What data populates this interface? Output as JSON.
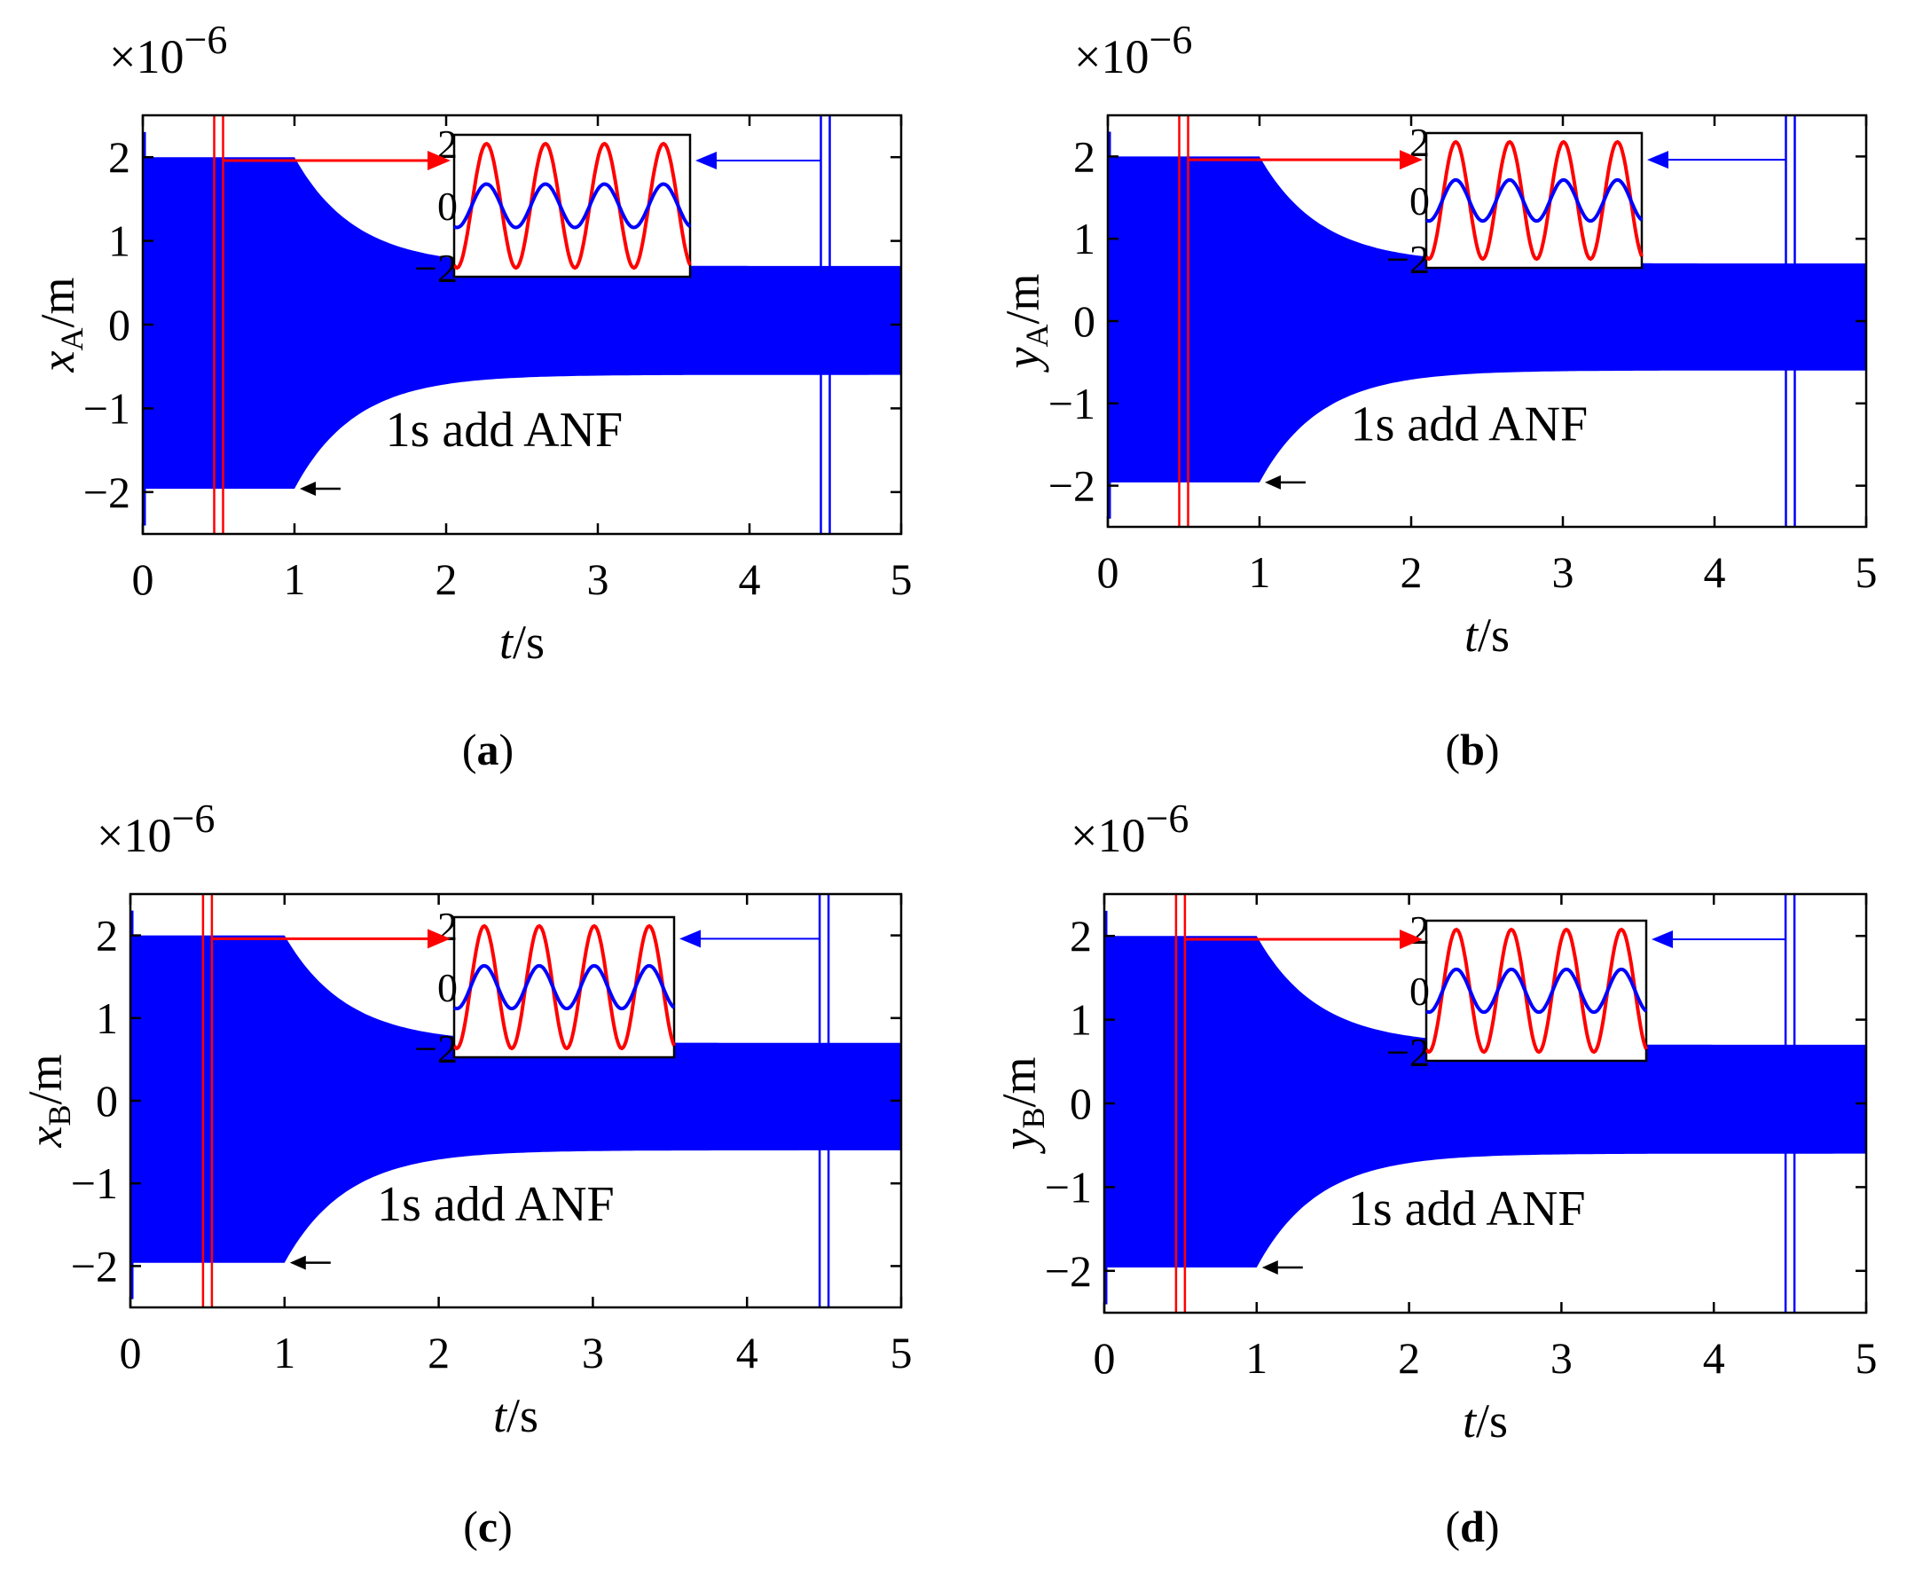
{
  "figure": {
    "colors": {
      "signal": "#0000ff",
      "inset_red": "#ff0000",
      "inset_blue": "#0000ff",
      "arrow_black": "#000000",
      "axes": "#000000"
    },
    "panels": [
      {
        "caption": "a",
        "ylabel_var": "x",
        "ylabel_sub": "A",
        "ylabel_unit": "/m",
        "xlabel_var": "t",
        "xlabel_unit": "/s",
        "exponent_base": "×10",
        "exponent_power": "−6",
        "annotation": "1s add ANF",
        "xticks": [
          "0",
          "1",
          "2",
          "3",
          "4",
          "5"
        ],
        "yticks": [
          "−2",
          "−1",
          "0",
          "1",
          "2"
        ],
        "inset_yticks": [
          "−2",
          "0",
          "2"
        ]
      },
      {
        "caption": "b",
        "ylabel_var": "y",
        "ylabel_sub": "A",
        "ylabel_unit": "/m",
        "xlabel_var": "t",
        "xlabel_unit": "/s",
        "exponent_base": "×10",
        "exponent_power": "−6",
        "annotation": "1s add ANF",
        "xticks": [
          "0",
          "1",
          "2",
          "3",
          "4",
          "5"
        ],
        "yticks": [
          "−2",
          "−1",
          "0",
          "1",
          "2"
        ],
        "inset_yticks": [
          "−2",
          "0",
          "2"
        ]
      },
      {
        "caption": "c",
        "ylabel_var": "x",
        "ylabel_sub": "B",
        "ylabel_unit": "/m",
        "xlabel_var": "t",
        "xlabel_unit": "/s",
        "exponent_base": "×10",
        "exponent_power": "−6",
        "annotation": "1s add ANF",
        "xticks": [
          "0",
          "1",
          "2",
          "3",
          "4",
          "5"
        ],
        "yticks": [
          "−2",
          "−1",
          "0",
          "1",
          "2"
        ],
        "inset_yticks": [
          "−2",
          "0",
          "2"
        ]
      },
      {
        "caption": "d",
        "ylabel_var": "y",
        "ylabel_sub": "B",
        "ylabel_unit": "/m",
        "xlabel_var": "t",
        "xlabel_unit": "/s",
        "exponent_base": "×10",
        "exponent_power": "−6",
        "annotation": "1s add ANF",
        "xticks": [
          "0",
          "1",
          "2",
          "3",
          "4",
          "5"
        ],
        "yticks": [
          "−2",
          "−1",
          "0",
          "1",
          "2"
        ],
        "inset_yticks": [
          "−2",
          "0",
          "2"
        ]
      }
    ]
  },
  "chart_data": [
    {
      "type": "area",
      "title": "(a)",
      "xlabel": "t/s",
      "ylabel": "x_A/m",
      "y_scale": "×10^-6",
      "xlim": [
        0,
        5
      ],
      "ylim": [
        -2.5,
        2.5
      ],
      "envelope": {
        "before_1s_amplitude": 2.0,
        "steady_state_upper": 0.7,
        "steady_state_lower": -0.6,
        "decay_time_constant_s": 0.4
      },
      "event": {
        "time": 1,
        "label": "1s add ANF"
      },
      "zoom_windows": [
        {
          "color": "red",
          "center_time": 0.5,
          "inset_amplitude": 2.0
        },
        {
          "color": "blue",
          "center_time": 4.5,
          "inset_amplitude": 0.7
        }
      ],
      "inset": {
        "ylim": [
          -2,
          2
        ],
        "periods": 4
      }
    },
    {
      "type": "area",
      "title": "(b)",
      "xlabel": "t/s",
      "ylabel": "y_A/m",
      "y_scale": "×10^-6",
      "xlim": [
        0,
        5
      ],
      "ylim": [
        -2.5,
        2.5
      ],
      "envelope": {
        "before_1s_amplitude": 2.0,
        "steady_state_upper": 0.7,
        "steady_state_lower": -0.6,
        "decay_time_constant_s": 0.4
      },
      "event": {
        "time": 1,
        "label": "1s add ANF"
      },
      "zoom_windows": [
        {
          "color": "red",
          "center_time": 0.5,
          "inset_amplitude": 2.0
        },
        {
          "color": "blue",
          "center_time": 4.5,
          "inset_amplitude": 0.7
        }
      ],
      "inset": {
        "ylim": [
          -2,
          2
        ],
        "periods": 4
      }
    },
    {
      "type": "area",
      "title": "(c)",
      "xlabel": "t/s",
      "ylabel": "x_B/m",
      "y_scale": "×10^-6",
      "xlim": [
        0,
        5
      ],
      "ylim": [
        -2.5,
        2.5
      ],
      "envelope": {
        "before_1s_amplitude": 2.0,
        "steady_state_upper": 0.7,
        "steady_state_lower": -0.6,
        "decay_time_constant_s": 0.4
      },
      "event": {
        "time": 1,
        "label": "1s add ANF"
      },
      "zoom_windows": [
        {
          "color": "red",
          "center_time": 0.5,
          "inset_amplitude": 2.0
        },
        {
          "color": "blue",
          "center_time": 4.5,
          "inset_amplitude": 0.7
        }
      ],
      "inset": {
        "ylim": [
          -2,
          2
        ],
        "periods": 4
      }
    },
    {
      "type": "area",
      "title": "(d)",
      "xlabel": "t/s",
      "ylabel": "y_B/m",
      "y_scale": "×10^-6",
      "xlim": [
        0,
        5
      ],
      "ylim": [
        -2.5,
        2.5
      ],
      "envelope": {
        "before_1s_amplitude": 2.0,
        "steady_state_upper": 0.7,
        "steady_state_lower": -0.6,
        "decay_time_constant_s": 0.4
      },
      "event": {
        "time": 1,
        "label": "1s add ANF"
      },
      "zoom_windows": [
        {
          "color": "red",
          "center_time": 0.5,
          "inset_amplitude": 2.0
        },
        {
          "color": "blue",
          "center_time": 4.5,
          "inset_amplitude": 0.7
        }
      ],
      "inset": {
        "ylim": [
          -2,
          2
        ],
        "periods": 4
      }
    }
  ]
}
